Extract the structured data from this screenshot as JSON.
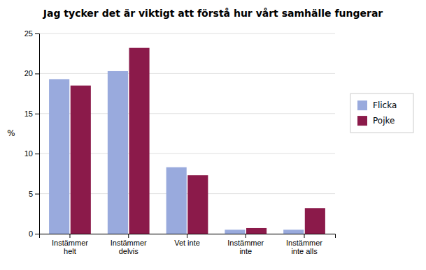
{
  "chart_data": {
    "type": "bar",
    "title": "Jag tycker det är viktigt att förstå hur vårt samhälle fungerar",
    "categories": [
      "Instämmer\nhelt",
      "Instämmer\ndelvis",
      "Vet inte",
      "Instämmer\ninte",
      "Instämmer\ninte alls"
    ],
    "series": [
      {
        "name": "Flicka",
        "color": "#99AADD",
        "values": [
          19.3,
          20.3,
          8.3,
          0.5,
          0.5
        ]
      },
      {
        "name": "Pojke",
        "color": "#8B1A4A",
        "values": [
          18.5,
          23.2,
          7.3,
          0.7,
          3.2
        ]
      }
    ],
    "ylabel": "%",
    "ylim": [
      0,
      25
    ],
    "yticks": [
      0,
      5,
      10,
      15,
      20,
      25
    ],
    "grid": true,
    "legend": "right"
  }
}
